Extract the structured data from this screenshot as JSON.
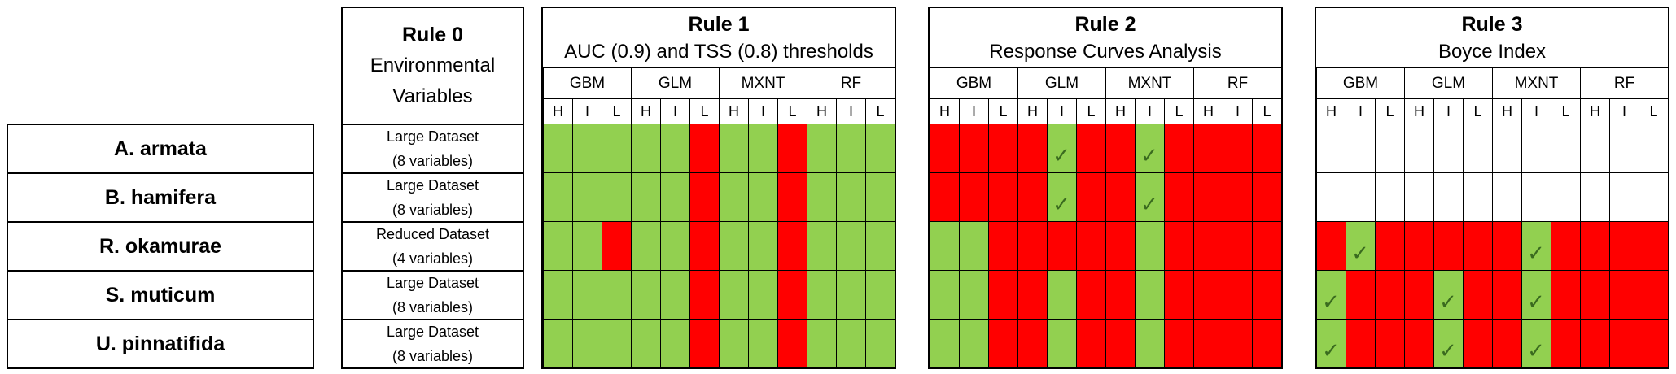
{
  "species": [
    "A. armata",
    "B. hamifera",
    "R. okamurae",
    "S. muticum",
    "U. pinnatifida"
  ],
  "rule0": {
    "title": "Rule 0",
    "subtitle_line1": "Environmental",
    "subtitle_line2": "Variables",
    "datasets": [
      {
        "line1": "Large Dataset",
        "line2": "(8 variables)"
      },
      {
        "line1": "Large Dataset",
        "line2": "(8 variables)"
      },
      {
        "line1": "Reduced Dataset",
        "line2": "(4 variables)"
      },
      {
        "line1": "Large Dataset",
        "line2": "(8 variables)"
      },
      {
        "line1": "Large Dataset",
        "line2": "(8 variables)"
      }
    ]
  },
  "algorithms": [
    "GBM",
    "GLM",
    "MXNT",
    "RF"
  ],
  "levels": [
    "H",
    "I",
    "L"
  ],
  "colors": {
    "green": "#92d050",
    "red": "#ff0000",
    "check": "#3a6b1f"
  },
  "rules": [
    {
      "title": "Rule 1",
      "subtitle": "AUC (0.9) and TSS (0.8) thresholds",
      "cells": [
        "GGGGGRGGRGGG",
        "GGGGGRGGRGGG",
        "GGRGGRGGRGGG",
        "GGGGGRGGRGGG",
        "GGGGGRGGRGGG"
      ],
      "checks": [
        [],
        [],
        [],
        [],
        []
      ]
    },
    {
      "title": "Rule 2",
      "subtitle": "Response Curves Analysis",
      "cells": [
        "RRRRGRRGRRRR",
        "RRRRGRRGRRRR",
        "GGRRRRRGRRRR",
        "GGRRGRRGRRRR",
        "GGRRGRRGRRRR"
      ],
      "checks": [
        [
          4,
          7
        ],
        [
          4,
          7
        ],
        [],
        [],
        []
      ]
    },
    {
      "title": "Rule 3",
      "subtitle": "Boyce Index",
      "cells": [
        "WWWWWWWWWWWW",
        "WWWWWWWWWWWW",
        "RGRRRRRGRRRR",
        "GRRRGRRGRRRR",
        "GRRRGRRGRRRR"
      ],
      "checks": [
        [],
        [],
        [
          1,
          7
        ],
        [
          0,
          4,
          7
        ],
        [
          0,
          4,
          7
        ]
      ]
    }
  ]
}
